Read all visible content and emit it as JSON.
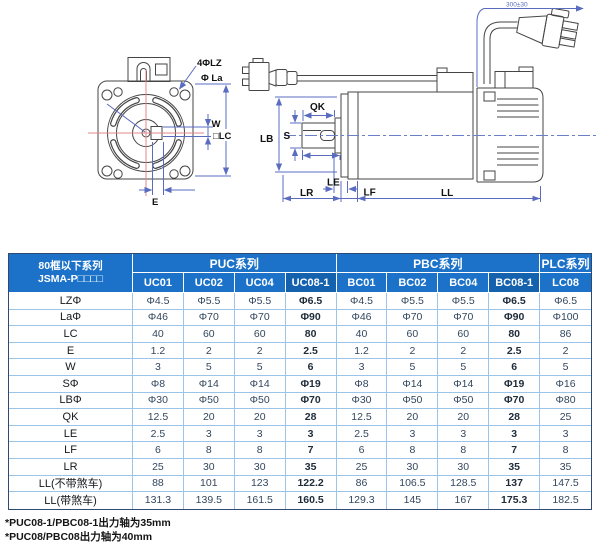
{
  "drawing": {
    "front": {
      "labels": {
        "holes": "4ΦLZ",
        "la": "Φ La",
        "w": "W",
        "lc": "□LC",
        "e": "E"
      }
    },
    "side": {
      "labels": {
        "lb": "LB",
        "s": "S",
        "qk": "QK",
        "le": "LE",
        "lr": "LR",
        "lf": "LF",
        "ll": "LL",
        "cable": "300±30"
      }
    }
  },
  "table": {
    "corner": {
      "line1": "80框以下系列",
      "line2": "JSMA-P□□□□"
    },
    "groups": [
      {
        "label": "PUC系列",
        "span": 4
      },
      {
        "label": "PBC系列",
        "span": 4
      },
      {
        "label": "PLC系列",
        "span": 1
      }
    ],
    "columns": [
      {
        "label": "UC01"
      },
      {
        "label": "UC02"
      },
      {
        "label": "UC04"
      },
      {
        "label": "UC08-1",
        "highlight": true
      },
      {
        "label": "BC01"
      },
      {
        "label": "BC02"
      },
      {
        "label": "BC04"
      },
      {
        "label": "BC08-1",
        "highlight": true
      },
      {
        "label": "LC08"
      }
    ],
    "rows": [
      {
        "label": "LZΦ",
        "values": [
          "Φ4.5",
          "Φ5.5",
          "Φ5.5",
          "Φ6.5",
          "Φ4.5",
          "Φ5.5",
          "Φ5.5",
          "Φ6.5",
          "Φ6.5"
        ]
      },
      {
        "label": "LaΦ",
        "values": [
          "Φ46",
          "Φ70",
          "Φ70",
          "Φ90",
          "Φ46",
          "Φ70",
          "Φ70",
          "Φ90",
          "Φ100"
        ]
      },
      {
        "label": "LC",
        "values": [
          "40",
          "60",
          "60",
          "80",
          "40",
          "60",
          "60",
          "80",
          "86"
        ]
      },
      {
        "label": "E",
        "values": [
          "1.2",
          "2",
          "2",
          "2.5",
          "1.2",
          "2",
          "2",
          "2.5",
          "2"
        ]
      },
      {
        "label": "W",
        "values": [
          "3",
          "5",
          "5",
          "6",
          "3",
          "5",
          "5",
          "6",
          "5"
        ]
      },
      {
        "label": "SΦ",
        "values": [
          "Φ8",
          "Φ14",
          "Φ14",
          "Φ19",
          "Φ8",
          "Φ14",
          "Φ14",
          "Φ19",
          "Φ16"
        ]
      },
      {
        "label": "LBΦ",
        "values": [
          "Φ30",
          "Φ50",
          "Φ50",
          "Φ70",
          "Φ30",
          "Φ50",
          "Φ50",
          "Φ70",
          "Φ80"
        ]
      },
      {
        "label": "QK",
        "values": [
          "12.5",
          "20",
          "20",
          "28",
          "12.5",
          "20",
          "20",
          "28",
          "25"
        ]
      },
      {
        "label": "LE",
        "values": [
          "2.5",
          "3",
          "3",
          "3",
          "2.5",
          "3",
          "3",
          "3",
          "3"
        ]
      },
      {
        "label": "LF",
        "values": [
          "6",
          "8",
          "8",
          "7",
          "6",
          "8",
          "8",
          "7",
          "8"
        ]
      },
      {
        "label": "LR",
        "values": [
          "25",
          "30",
          "30",
          "35",
          "25",
          "30",
          "30",
          "35",
          "35"
        ]
      },
      {
        "label": "LL(不带煞车)",
        "values": [
          "88",
          "101",
          "123",
          "122.2",
          "86",
          "106.5",
          "128.5",
          "137",
          "147.5"
        ]
      },
      {
        "label": "LL(带煞车)",
        "values": [
          "131.3",
          "139.5",
          "161.5",
          "160.5",
          "129.3",
          "145",
          "167",
          "175.3",
          "182.5"
        ]
      }
    ]
  },
  "footnotes": [
    "*PUC08-1/PBC08-1出力轴为35mm",
    "*PUC08/PBC08出力轴为40mm"
  ],
  "colors": {
    "header_blue": "#1b72c8",
    "header_blue_dark": "#1461ae",
    "grid_line": "#9cc3e8",
    "outer_border": "#2e4a73",
    "dim_blue": "#5a6cc0",
    "centerline_red": "#e08888",
    "drawing_line": "#454545",
    "value_text": "#33475e"
  }
}
